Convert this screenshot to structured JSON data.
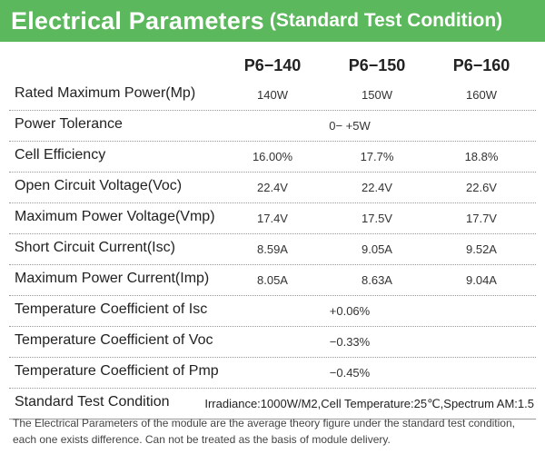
{
  "header": {
    "title": "Electrical Parameters",
    "subtitle": "(Standard Test Condition)"
  },
  "columns": [
    "P6−140",
    "P6−150",
    "P6−160"
  ],
  "rows": [
    {
      "label": "Rated Maximum Power(Mp)",
      "values": [
        "140W",
        "150W",
        "160W"
      ]
    },
    {
      "label": "Power Tolerance",
      "span": "0− +5W"
    },
    {
      "label": "Cell Efficiency",
      "values": [
        "16.00%",
        "17.7%",
        "18.8%"
      ]
    },
    {
      "label": "Open Circuit Voltage(Voc)",
      "values": [
        "22.4V",
        "22.4V",
        "22.6V"
      ]
    },
    {
      "label": "Maximum Power Voltage(Vmp)",
      "values": [
        "17.4V",
        "17.5V",
        "17.7V"
      ]
    },
    {
      "label": "Short Circuit Current(Isc)",
      "values": [
        "8.59A",
        "9.05A",
        "9.52A"
      ]
    },
    {
      "label": "Maximum Power Current(Imp)",
      "values": [
        "8.05A",
        "8.63A",
        "9.04A"
      ]
    },
    {
      "label": "Temperature Coefficient of Isc",
      "span": "+0.06%"
    },
    {
      "label": "Temperature Coefficient of Voc",
      "span": "−0.33%"
    },
    {
      "label": "Temperature Coefficient of Pmp",
      "span": "−0.45%"
    }
  ],
  "standard_test_condition": {
    "label": "Standard Test Condition",
    "value": "Irradiance:1000W/M2,Cell Temperature:25℃,Spectrum AM:1.5"
  },
  "footnote": "The Electrical Parameters of the module are the average theory figure under the standard test condition, each one exists difference. Can not be treated as the basis of module delivery.",
  "colors": {
    "header_bg": "#5cb85c",
    "header_text": "#ffffff"
  }
}
